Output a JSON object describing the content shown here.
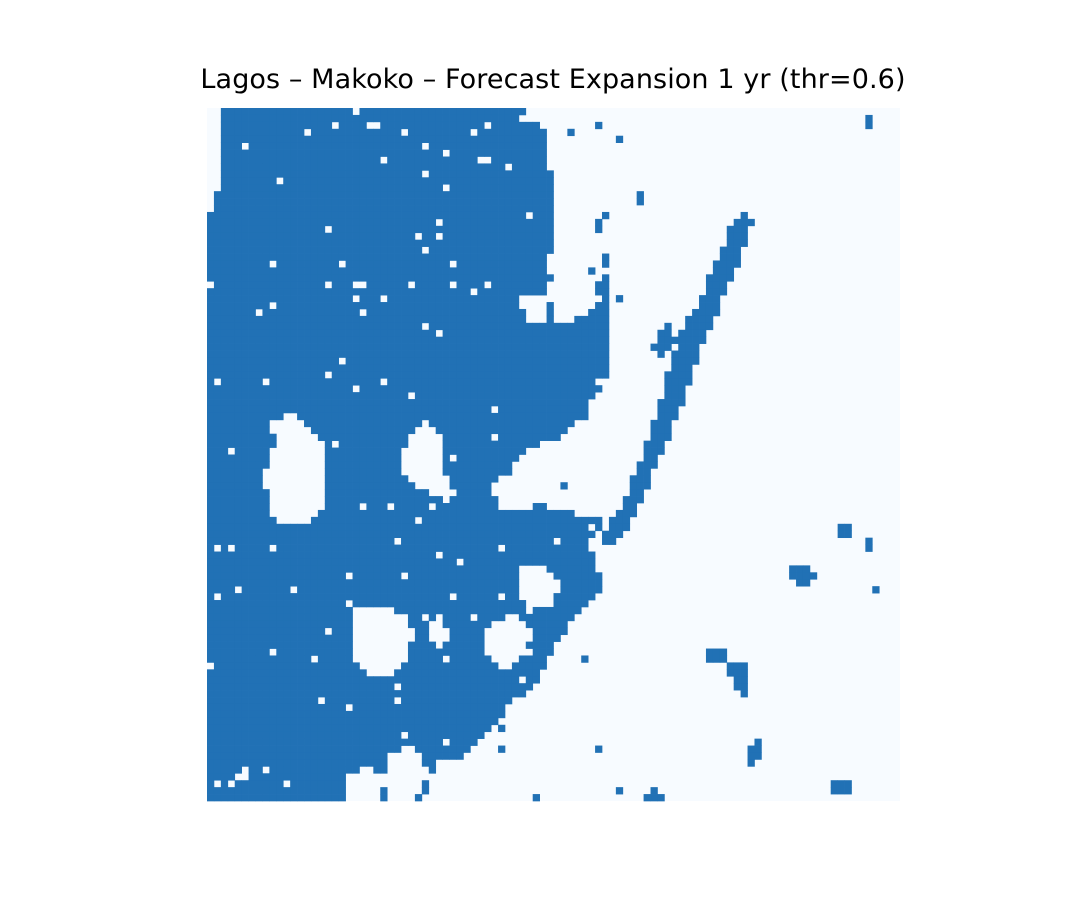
{
  "chart_data": {
    "type": "heatmap",
    "title": "Lagos – Makoko – Forecast Expansion 1 yr (thr=0.6)",
    "xlabel": "",
    "ylabel": "",
    "axes_visible": false,
    "grid": false,
    "legend": "none",
    "colorbar": false,
    "threshold": 0.6,
    "colormap": {
      "0": "#f7fbff",
      "1": "#2171b5"
    },
    "description_of_values": "binary mask: 1 = predicted expansion (dark blue), 0 = no expansion",
    "grid_size": [
      100,
      100
    ],
    "regions": {
      "expansion_polygon": [
        [
          0,
          0
        ],
        [
          12,
          0
        ],
        [
          13,
          0
        ],
        [
          45,
          0
        ],
        [
          50,
          4
        ],
        [
          50,
          15
        ],
        [
          49,
          27
        ],
        [
          51,
          32
        ],
        [
          56,
          29
        ],
        [
          57,
          18
        ],
        [
          58,
          14
        ],
        [
          56,
          17
        ],
        [
          58,
          22
        ],
        [
          58,
          38
        ],
        [
          54,
          45
        ],
        [
          52,
          46
        ],
        [
          51,
          48
        ],
        [
          46,
          49
        ],
        [
          44,
          52
        ],
        [
          46,
          54
        ],
        [
          49,
          58
        ],
        [
          57,
          59
        ],
        [
          58,
          60
        ],
        [
          55,
          62
        ],
        [
          57,
          69
        ],
        [
          52,
          75
        ],
        [
          50,
          78
        ],
        [
          49,
          80
        ],
        [
          48,
          83
        ],
        [
          45,
          85
        ],
        [
          43,
          87
        ],
        [
          42,
          89
        ],
        [
          40,
          91
        ],
        [
          36,
          94
        ],
        [
          35,
          100
        ],
        [
          0,
          100
        ]
      ],
      "coastal_strip": [
        [
          68,
          33
        ],
        [
          71,
          28
        ],
        [
          76,
          16
        ],
        [
          78,
          15
        ],
        [
          79,
          16
        ],
        [
          76,
          24
        ],
        [
          72,
          33
        ],
        [
          68,
          44
        ],
        [
          63,
          56
        ],
        [
          60,
          62
        ],
        [
          58,
          64
        ],
        [
          57,
          62
        ],
        [
          60,
          57
        ],
        [
          64,
          47
        ]
      ],
      "holes": [
        [
          [
            9,
            45
          ],
          [
            13,
            44
          ],
          [
            15,
            46
          ],
          [
            17,
            49
          ],
          [
            17,
            58
          ],
          [
            14,
            60
          ],
          [
            10,
            60
          ],
          [
            9,
            57
          ],
          [
            8,
            53
          ],
          [
            10,
            48
          ]
        ],
        [
          [
            29,
            47
          ],
          [
            32,
            45
          ],
          [
            34,
            47
          ],
          [
            34,
            52
          ],
          [
            36,
            56
          ],
          [
            35,
            57
          ],
          [
            31,
            55
          ],
          [
            28,
            52
          ]
        ],
        [
          [
            22,
            72
          ],
          [
            27,
            72
          ],
          [
            30,
            75
          ],
          [
            29,
            80
          ],
          [
            27,
            82
          ],
          [
            23,
            82
          ],
          [
            21,
            79
          ],
          [
            21,
            75
          ]
        ],
        [
          [
            32,
            74
          ],
          [
            34,
            73
          ],
          [
            35,
            76
          ],
          [
            34,
            78
          ],
          [
            32,
            77
          ]
        ],
        [
          [
            41,
            74
          ],
          [
            45,
            73
          ],
          [
            47,
            76
          ],
          [
            45,
            80
          ],
          [
            43,
            81
          ],
          [
            40,
            79
          ],
          [
            40,
            76
          ]
        ],
        [
          [
            45,
            66
          ],
          [
            49,
            66
          ],
          [
            51,
            68
          ],
          [
            50,
            72
          ],
          [
            47,
            72
          ],
          [
            45,
            70
          ]
        ],
        [
          [
            0,
            0
          ],
          [
            2,
            0
          ],
          [
            2,
            10
          ],
          [
            1,
            15
          ],
          [
            0,
            16
          ]
        ],
        [
          [
            49,
            0
          ],
          [
            56,
            0
          ],
          [
            58,
            4
          ],
          [
            56,
            8
          ],
          [
            54,
            14
          ],
          [
            50,
            12
          ],
          [
            49,
            6
          ]
        ],
        [
          [
            53,
            20
          ],
          [
            57,
            20
          ],
          [
            57,
            25
          ],
          [
            55,
            27
          ],
          [
            52,
            26
          ]
        ],
        [
          [
            45,
            27
          ],
          [
            49,
            27
          ],
          [
            49,
            31
          ],
          [
            46,
            31
          ]
        ],
        [
          [
            41,
            54
          ],
          [
            47,
            52
          ],
          [
            49,
            56
          ],
          [
            46,
            58
          ],
          [
            42,
            58
          ]
        ],
        [
          [
            31,
            100
          ],
          [
            33,
            95
          ],
          [
            34,
            94
          ],
          [
            36,
            94
          ],
          [
            35,
            100
          ]
        ],
        [
          [
            20,
            96
          ],
          [
            24,
            95
          ],
          [
            26,
            97
          ],
          [
            25,
            100
          ],
          [
            20,
            100
          ]
        ],
        [
          [
            26,
            93
          ],
          [
            30,
            92
          ],
          [
            32,
            96
          ],
          [
            30,
            100
          ],
          [
            26,
            100
          ]
        ]
      ],
      "islands": [
        [
          [
            65,
            33
          ],
          [
            67,
            31
          ],
          [
            68,
            34
          ],
          [
            66,
            36
          ],
          [
            64,
            35
          ]
        ],
        [
          [
            75,
            80
          ],
          [
            78,
            80
          ],
          [
            78,
            85
          ],
          [
            76,
            84
          ]
        ],
        [
          [
            84,
            66
          ],
          [
            87,
            66
          ],
          [
            88,
            68
          ],
          [
            86,
            69
          ],
          [
            84,
            68
          ]
        ],
        [
          [
            72,
            78
          ],
          [
            75,
            78
          ],
          [
            75,
            80
          ],
          [
            72,
            80
          ]
        ],
        [
          [
            90,
            97
          ],
          [
            93,
            97
          ],
          [
            93,
            99
          ],
          [
            90,
            99
          ]
        ],
        [
          [
            46,
            100
          ],
          [
            48,
            99
          ],
          [
            49,
            100
          ]
        ],
        [
          [
            62,
            100
          ],
          [
            65,
            98
          ],
          [
            67,
            100
          ]
        ],
        [
          [
            95,
            62
          ],
          [
            96,
            62
          ],
          [
            96,
            64
          ],
          [
            95,
            64
          ]
        ],
        [
          [
            91,
            60
          ],
          [
            93,
            60
          ],
          [
            93,
            62
          ],
          [
            91,
            62
          ]
        ],
        [
          [
            96,
            69
          ],
          [
            97,
            69
          ],
          [
            97,
            70
          ],
          [
            96,
            70
          ]
        ],
        [
          [
            78,
            92
          ],
          [
            80,
            91
          ],
          [
            80,
            94
          ],
          [
            79,
            95
          ],
          [
            78,
            94
          ]
        ],
        [
          [
            62,
            12
          ],
          [
            63,
            12
          ],
          [
            63,
            14
          ],
          [
            62,
            14
          ]
        ],
        [
          [
            95,
            1
          ],
          [
            96,
            1
          ],
          [
            96,
            3
          ],
          [
            95,
            3
          ]
        ]
      ]
    }
  }
}
